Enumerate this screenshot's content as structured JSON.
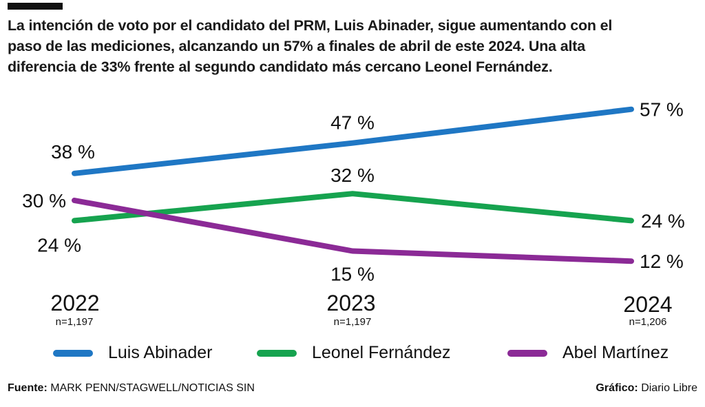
{
  "headline": {
    "lines": [
      "La intención de voto por el candidato del PRM,  Luis Abinader, sigue aumentando con el",
      "paso de las mediciones, alcanzando un 57% a finales de abril de este 2024. Una alta",
      "diferencia de 33% frente al segundo candidato más cercano Leonel Fernández."
    ]
  },
  "chart_data": {
    "type": "line",
    "title": "La intención de voto por el candidato del PRM,  Luis Abinader, sigue aumentando con el paso de las mediciones, alcanzando un 57% a finales de abril de este 2024. Una alta diferencia de 33% frente al segundo candidato más cercano Leonel Fernández.",
    "xlabel": "",
    "ylabel": "",
    "x": [
      "2022",
      "2023",
      "2024"
    ],
    "sample_sizes": [
      "n=1,197",
      "n=1,197",
      "n=1,206"
    ],
    "series": [
      {
        "name": "Luis Abinader",
        "color": "#1f77c4",
        "values": [
          38,
          47,
          57
        ],
        "labels": [
          "38 %",
          "47 %",
          "57 %"
        ]
      },
      {
        "name": "Leonel Fernández",
        "color": "#16a34f",
        "values": [
          24,
          32,
          24
        ],
        "labels": [
          "24 %",
          "32 %",
          "24 %"
        ]
      },
      {
        "name": "Abel Martínez",
        "color": "#8b2a96",
        "values": [
          30,
          15,
          12
        ],
        "labels": [
          "30 %",
          "15 %",
          "12 %"
        ]
      }
    ],
    "ylim": [
      10,
      60
    ],
    "grid": false,
    "legend": "bottom"
  },
  "footer": {
    "source_label": "Fuente:",
    "source_value": "MARK PENN/STAGWELL/NOTICIAS SIN",
    "credit_label": "Gráfico:",
    "credit_value": "Diario Libre"
  }
}
